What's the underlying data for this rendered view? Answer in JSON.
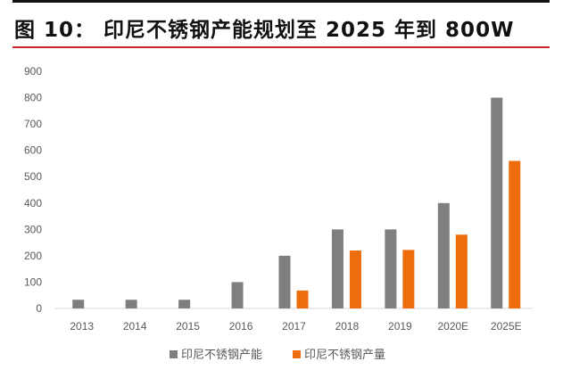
{
  "title": "图 10：  印尼不锈钢产能规划至 2025 年到 800W",
  "chart_data": {
    "type": "bar",
    "title": "",
    "xlabel": "",
    "ylabel": "",
    "ylim": [
      0,
      900
    ],
    "yticks": [
      0,
      100,
      200,
      300,
      400,
      500,
      600,
      700,
      800,
      900
    ],
    "grid": false,
    "legend_position": "bottom",
    "categories": [
      "2013",
      "2014",
      "2015",
      "2016",
      "2017",
      "2018",
      "2019",
      "2020E",
      "2025E"
    ],
    "series": [
      {
        "name": "印尼不锈钢产能",
        "color": "#7f7f7f",
        "values": [
          33,
          33,
          33,
          100,
          200,
          300,
          300,
          400,
          800
        ]
      },
      {
        "name": "印尼不锈钢产量",
        "color": "#ed6c0c",
        "values": [
          null,
          null,
          null,
          null,
          68,
          220,
          222,
          280,
          560
        ]
      }
    ]
  }
}
